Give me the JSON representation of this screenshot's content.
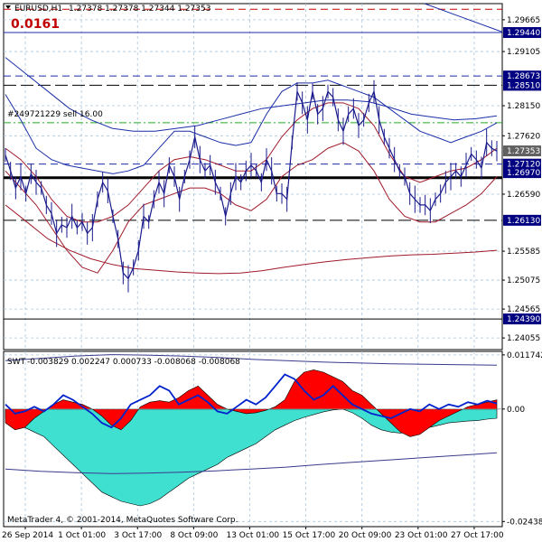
{
  "header": {
    "symbol": "EURUSD,H1",
    "ohlc": "1.27378 1.27378 1.27344 1.27353",
    "spread": "0.0161"
  },
  "trade_label": "#249721229 sell 16.00",
  "indicator": {
    "name": "SWT",
    "values": "-0.003829 0.002247 0.000733 -0.008068 -0.008068"
  },
  "copyright": "MetaTrader 4, © 2001-2014, MetaQuotes Software Corp.",
  "colors": {
    "price": "#1a1a8c",
    "band_blue": "#1c2fa8",
    "band_red": "#a01a2a",
    "hist_red": "#ff0000",
    "hist_teal": "#40e0d0",
    "swt_line": "#0022cc",
    "grid": "#a9c5dd",
    "tag_bg": "#000080"
  },
  "chart_data": [
    {
      "type": "line",
      "title": "EURUSD,H1",
      "x_ticks": [
        "26 Sep 2014",
        "1 Oct 01:00",
        "3 Oct 17:00",
        "8 Oct 09:00",
        "13 Oct 01:00",
        "15 Oct 17:00",
        "20 Oct 09:00",
        "23 Oct 01:00",
        "27 Oct 17:00"
      ],
      "y_ticks": [
        1.29665,
        1.29105,
        1.2815,
        1.2762,
        1.2659,
        1.25585,
        1.25075,
        1.24565,
        1.24055
      ],
      "ylim": [
        1.2385,
        1.2995
      ],
      "price_tags": [
        {
          "value": 1.2944,
          "label": "1.29440"
        },
        {
          "value": 1.28673,
          "label": "1.28673"
        },
        {
          "value": 1.2851,
          "label": "1.28510"
        },
        {
          "value": 1.27353,
          "label": "1.27353"
        },
        {
          "value": 1.2712,
          "label": "1.27120"
        },
        {
          "value": 1.2697,
          "label": "1.26970"
        },
        {
          "value": 1.2613,
          "label": "1.26130"
        },
        {
          "value": 1.2439,
          "label": "1.24390"
        }
      ],
      "levels": [
        {
          "value": 1.2985,
          "style": "dash-red"
        },
        {
          "value": 1.2944,
          "style": "solid-blue"
        },
        {
          "value": 1.28673,
          "style": "dash-blue"
        },
        {
          "value": 1.2851,
          "style": "dash-black"
        },
        {
          "value": 1.2785,
          "style": "dashdot-green"
        },
        {
          "value": 1.2712,
          "style": "dash-blue"
        },
        {
          "value": 1.2688,
          "style": "thick-black"
        },
        {
          "value": 1.2613,
          "style": "dash-black"
        },
        {
          "value": 1.2439,
          "style": "solid-black"
        }
      ],
      "price": [
        1.2728,
        1.27,
        1.267,
        1.269,
        1.266,
        1.2695,
        1.268,
        1.267,
        1.264,
        1.2625,
        1.259,
        1.2605,
        1.26,
        1.262,
        1.26,
        1.261,
        1.259,
        1.26,
        1.265,
        1.268,
        1.2665,
        1.262,
        1.258,
        1.252,
        1.251,
        1.253,
        1.256,
        1.262,
        1.261,
        1.265,
        1.268,
        1.266,
        1.271,
        1.269,
        1.265,
        1.269,
        1.272,
        1.276,
        1.272,
        1.27,
        1.271,
        1.268,
        1.266,
        1.262,
        1.266,
        1.269,
        1.268,
        1.27,
        1.271,
        1.27,
        1.268,
        1.272,
        1.27,
        1.266,
        1.266,
        1.265,
        1.275,
        1.284,
        1.282,
        1.279,
        1.284,
        1.28,
        1.281,
        1.284,
        1.283,
        1.279,
        1.277,
        1.28,
        1.281,
        1.278,
        1.279,
        1.282,
        1.284,
        1.279,
        1.276,
        1.274,
        1.272,
        1.27,
        1.269,
        1.266,
        1.265,
        1.264,
        1.264,
        1.263,
        1.265,
        1.266,
        1.268,
        1.269,
        1.27,
        1.269,
        1.271,
        1.273,
        1.272,
        1.2705,
        1.275,
        1.274,
        1.2735
      ],
      "bands": {
        "upper": [
          1.2835,
          1.279,
          1.274,
          1.272,
          1.271,
          1.2705,
          1.27,
          1.2695,
          1.27,
          1.271,
          1.274,
          1.277,
          1.277,
          1.276,
          1.275,
          1.2745,
          1.275,
          1.28,
          1.284,
          1.2855,
          1.2855,
          1.286,
          1.285,
          1.284,
          1.283,
          1.281,
          1.279,
          1.277,
          1.276,
          1.275,
          1.276,
          1.277,
          1.2785
        ],
        "mid": [
          1.274,
          1.272,
          1.269,
          1.265,
          1.262,
          1.261,
          1.261,
          1.262,
          1.264,
          1.267,
          1.27,
          1.272,
          1.2725,
          1.272,
          1.271,
          1.27,
          1.27,
          1.272,
          1.276,
          1.279,
          1.281,
          1.282,
          1.282,
          1.281,
          1.278,
          1.273,
          1.269,
          1.268,
          1.269,
          1.27,
          1.2705,
          1.272,
          1.274
        ],
        "lower": [
          1.27,
          1.267,
          1.264,
          1.26,
          1.256,
          1.253,
          1.252,
          1.256,
          1.261,
          1.264,
          1.265,
          1.266,
          1.267,
          1.267,
          1.266,
          1.264,
          1.263,
          1.265,
          1.269,
          1.271,
          1.272,
          1.274,
          1.275,
          1.2735,
          1.27,
          1.265,
          1.262,
          1.261,
          1.261,
          1.2625,
          1.264,
          1.266,
          1.269
        ],
        "outer_upper": [
          1.29,
          1.287,
          1.284,
          1.281,
          1.279,
          1.2775,
          1.277,
          1.277,
          1.2775,
          1.278,
          1.279,
          1.28,
          1.281,
          1.2815,
          1.282,
          1.2825,
          1.2825,
          1.2822,
          1.2812,
          1.28,
          1.2795,
          1.279,
          1.2792,
          1.2797
        ],
        "outer_lower": [
          1.264,
          1.261,
          1.258,
          1.256,
          1.2545,
          1.2535,
          1.2528,
          1.2525,
          1.2522,
          1.252,
          1.2519,
          1.252,
          1.2524,
          1.253,
          1.2535,
          1.254,
          1.2544,
          1.2547,
          1.255,
          1.2552,
          1.2553,
          1.2555,
          1.2557,
          1.256
        ]
      }
    },
    {
      "type": "area",
      "title": "SWT",
      "y_ticks": [
        0.011742,
        0.0,
        -0.024383
      ],
      "ylim": [
        -0.0255,
        0.0125
      ],
      "histogram": [
        -0.003,
        -0.0045,
        -0.004,
        -0.002,
        -0.0005,
        0.001,
        0.002,
        0.0015,
        0.001,
        0.0,
        -0.0015,
        -0.0035,
        -0.0045,
        -0.0025,
        0.0005,
        0.0015,
        0.0018,
        0.0015,
        0.0025,
        0.004,
        0.005,
        0.003,
        0.001,
        0.0,
        -0.0005,
        -0.001,
        -0.0008,
        -0.0003,
        0.0005,
        0.002,
        0.006,
        0.008,
        0.0085,
        0.008,
        0.007,
        0.006,
        0.004,
        0.003,
        0.001,
        -0.001,
        -0.003,
        -0.005,
        -0.006,
        -0.0055,
        -0.004,
        -0.0025,
        -0.0015,
        -0.0005,
        0.0005,
        0.001,
        0.0015,
        0.002
      ],
      "lower_area": [
        -0.002,
        -0.003,
        -0.004,
        -0.005,
        -0.006,
        -0.008,
        -0.01,
        -0.012,
        -0.014,
        -0.016,
        -0.018,
        -0.019,
        -0.02,
        -0.0205,
        -0.021,
        -0.0205,
        -0.0195,
        -0.018,
        -0.0165,
        -0.015,
        -0.014,
        -0.013,
        -0.012,
        -0.0105,
        -0.0095,
        -0.0085,
        -0.0075,
        -0.006,
        -0.0045,
        -0.0035,
        -0.0025,
        -0.0018,
        -0.0012,
        -0.0006,
        -0.0002,
        0.0,
        -0.0008,
        -0.002,
        -0.0035,
        -0.0045,
        -0.005,
        -0.0052,
        -0.005,
        -0.0045,
        -0.004,
        -0.0035,
        -0.003,
        -0.0028,
        -0.0026,
        -0.0025,
        -0.0022,
        -0.002
      ],
      "swt_line": [
        0.001,
        -0.001,
        -0.0005,
        0.0005,
        -0.0005,
        0.001,
        0.003,
        0.002,
        0.0005,
        -0.001,
        -0.003,
        -0.004,
        -0.002,
        0.001,
        0.002,
        0.003,
        0.005,
        0.004,
        0.001,
        0.002,
        0.003,
        0.0015,
        -0.0005,
        -0.001,
        0.0005,
        0.002,
        0.001,
        0.0025,
        0.005,
        0.0075,
        0.0065,
        0.004,
        0.002,
        0.003,
        0.005,
        0.003,
        0.001,
        0.0,
        -0.001,
        -0.0015,
        -0.002,
        -0.001,
        0.0,
        -0.0005,
        0.001,
        0.0,
        0.001,
        0.0005,
        0.0015,
        0.001,
        0.0018,
        0.0012
      ],
      "envelope_upper": [
        0.0105,
        0.011,
        0.0115,
        0.0118,
        0.0117,
        0.0115,
        0.0112,
        0.0108,
        0.0105,
        0.0102,
        0.01,
        0.0098,
        0.0097,
        0.0096,
        0.0095
      ],
      "envelope_lower": [
        -0.013,
        -0.0135,
        -0.0138,
        -0.014,
        -0.0139,
        -0.0137,
        -0.0134,
        -0.013,
        -0.0126,
        -0.012,
        -0.0115,
        -0.011,
        -0.0105,
        -0.01,
        -0.0095
      ]
    }
  ]
}
